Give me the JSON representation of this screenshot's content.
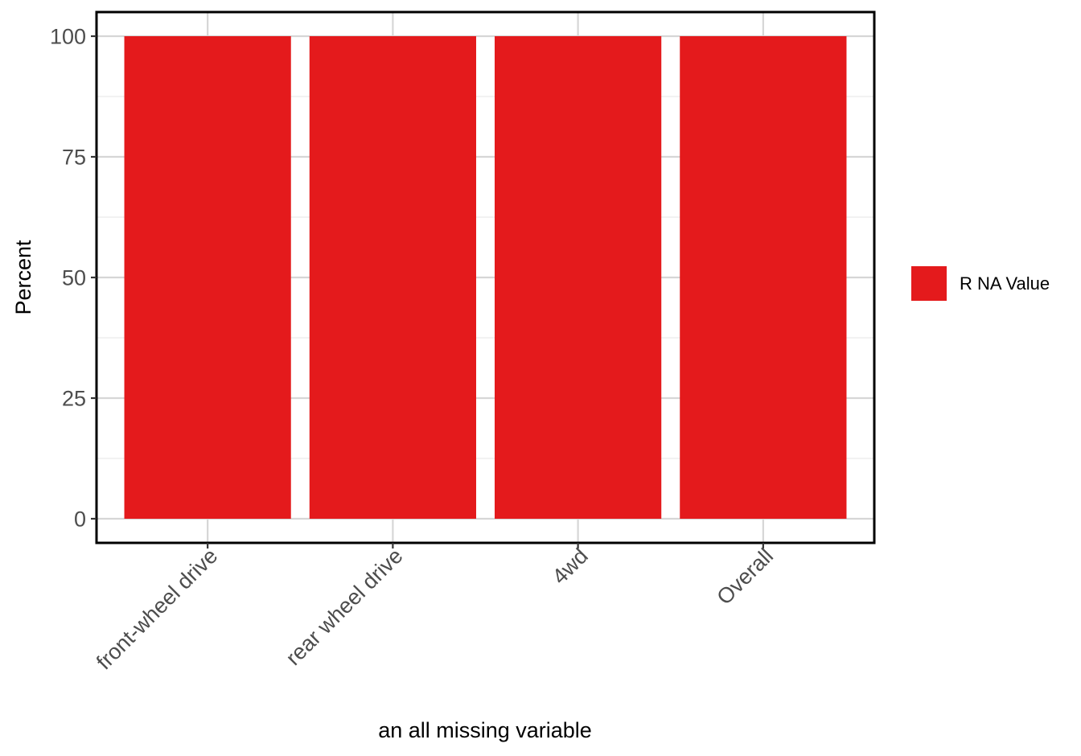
{
  "chart_data": {
    "type": "bar",
    "categories": [
      "front-wheel drive",
      "rear wheel drive",
      "4wd",
      "Overall"
    ],
    "series": [
      {
        "name": "R NA Value",
        "values": [
          100,
          100,
          100,
          100
        ],
        "color": "#e41a1c"
      }
    ],
    "title": "",
    "xlabel": "an all missing variable",
    "ylabel": "Percent",
    "ylim": [
      -5,
      105
    ],
    "yticks": [
      0,
      25,
      50,
      75,
      100
    ],
    "yticks_labels": [
      "0",
      "25",
      "50",
      "75",
      "100"
    ],
    "grid": true,
    "legend": {
      "position": "right",
      "entries": [
        "R NA Value"
      ]
    }
  }
}
